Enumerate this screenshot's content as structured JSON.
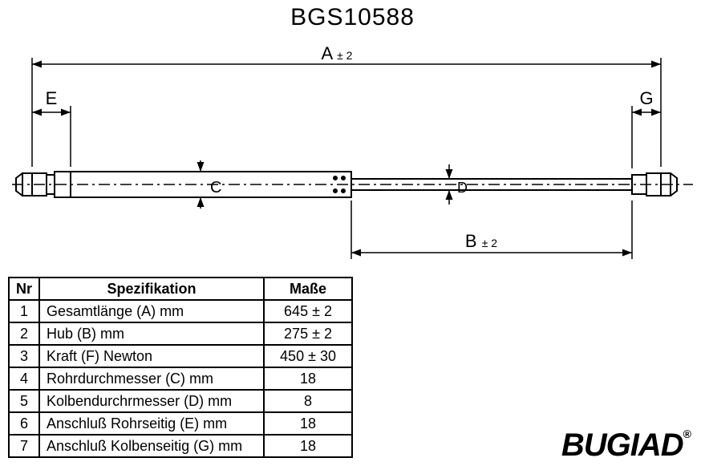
{
  "title": "BGS10588",
  "brand": "BUGIAD",
  "tm": "®",
  "drawing": {
    "stroke": "#000000",
    "stroke_width": 2,
    "labels": {
      "A": "A",
      "A_tol": "± 2",
      "B": "B",
      "B_tol": "± 2",
      "C": "C",
      "D": "D",
      "E": "E",
      "G": "G"
    },
    "arrow_size": 8,
    "centerline_dash": "12 4 2 4"
  },
  "table": {
    "headers": {
      "nr": "Nr",
      "spec": "Spezifikation",
      "mass": "Maße"
    },
    "rows": [
      {
        "nr": "1",
        "spec": "Gesamtlänge (A) mm",
        "mass": "645 ± 2"
      },
      {
        "nr": "2",
        "spec": "Hub (B)  mm",
        "mass": "275 ± 2"
      },
      {
        "nr": "3",
        "spec": "Kraft (F) Newton",
        "mass": "450 ± 30"
      },
      {
        "nr": "4",
        "spec": "Rohrdurchmesser (C) mm",
        "mass": "18"
      },
      {
        "nr": "5",
        "spec": "Kolbendurchrmesser (D) mm",
        "mass": "8"
      },
      {
        "nr": "6",
        "spec": "Anschluß Rohrseitig (E) mm",
        "mass": "18"
      },
      {
        "nr": "7",
        "spec": "Anschluß Kolbenseitig (G) mm",
        "mass": "18"
      }
    ]
  }
}
